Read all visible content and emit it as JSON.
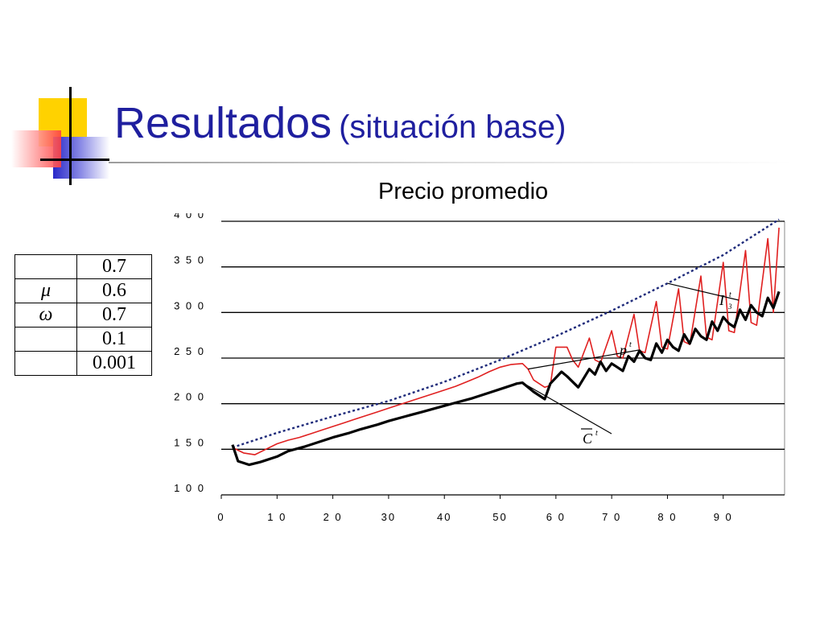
{
  "slide": {
    "title_main": "Resultados",
    "title_sub": "(situación base)",
    "colors": {
      "title": "#1f1f9f",
      "deco_yellow": "#ffd200",
      "deco_blue": "#2828c8",
      "deco_red": "#ff4040"
    }
  },
  "param_table": {
    "rows": [
      {
        "symbol": "",
        "value": "0.7"
      },
      {
        "symbol": "μ",
        "value": "0.6"
      },
      {
        "symbol": "ω",
        "value": "0.7"
      },
      {
        "symbol": "",
        "value": "0.1"
      },
      {
        "symbol": "",
        "value": "0.001"
      }
    ]
  },
  "chart_data": {
    "type": "line",
    "title": "Precio promedio",
    "xlabel": "",
    "ylabel": "",
    "xlim": [
      0,
      101
    ],
    "ylim": [
      100,
      400
    ],
    "x_ticks": [
      0,
      10,
      20,
      30,
      40,
      50,
      60,
      70,
      80,
      90
    ],
    "x_tick_labels": [
      "0",
      "1 0",
      "2 0",
      "30",
      "40",
      "50",
      "6 0",
      "7 0",
      "8 0",
      "9 0"
    ],
    "y_ticks": [
      100,
      150,
      200,
      250,
      300,
      350,
      400
    ],
    "y_tick_labels": [
      "1 0 0",
      "1 5 0",
      "2 0 0",
      "2 5 0",
      "3 0 0",
      "3 5 0",
      "4 0 0"
    ],
    "grid": "horizontal",
    "series_colors": [
      "#1e2a7a",
      "#e02020",
      "#000000"
    ],
    "series": [
      {
        "name": "I3t",
        "style": "dotted",
        "x": [
          2,
          10,
          20,
          30,
          40,
          50,
          60,
          70,
          80,
          90,
          100
        ],
        "y": [
          152,
          168,
          186,
          203,
          224,
          248,
          274,
          302,
          332,
          363,
          402
        ]
      },
      {
        "name": "pt",
        "style": "solid",
        "x": [
          2,
          4,
          6,
          8,
          10,
          12,
          14,
          16,
          18,
          20,
          22,
          24,
          26,
          28,
          30,
          32,
          34,
          36,
          38,
          40,
          42,
          44,
          46,
          48,
          50,
          52,
          54,
          55,
          56,
          58,
          59,
          60,
          62,
          63,
          64,
          66,
          67,
          68,
          70,
          71,
          72,
          74,
          75,
          76,
          78,
          79,
          80,
          82,
          83,
          84,
          86,
          87,
          88,
          90,
          91,
          92,
          94,
          95,
          96,
          98,
          99,
          100
        ],
        "y": [
          152,
          146,
          144,
          150,
          156,
          160,
          163,
          167,
          171,
          175,
          179,
          183,
          187,
          191,
          195,
          199,
          203,
          207,
          211,
          215,
          219,
          224,
          229,
          235,
          240,
          243,
          244,
          238,
          226,
          218,
          220,
          262,
          262,
          248,
          240,
          272,
          248,
          245,
          280,
          252,
          250,
          298,
          258,
          256,
          312,
          262,
          260,
          326,
          268,
          265,
          340,
          273,
          270,
          355,
          280,
          278,
          368,
          289,
          286,
          381,
          300,
          393
        ]
      },
      {
        "name": "Ct",
        "style": "solid-thick",
        "x": [
          2,
          3,
          5,
          7,
          10,
          12,
          15,
          18,
          20,
          23,
          25,
          28,
          30,
          33,
          36,
          39,
          42,
          45,
          48,
          51,
          53,
          54,
          56,
          58,
          59,
          61,
          62,
          64,
          66,
          67,
          68,
          69,
          70,
          71,
          72,
          73,
          74,
          75,
          76,
          77,
          78,
          79,
          80,
          81,
          82,
          83,
          84,
          85,
          86,
          87,
          88,
          89,
          90,
          91,
          92,
          93,
          94,
          95,
          96,
          97,
          98,
          99,
          100
        ],
        "y": [
          155,
          137,
          133,
          136,
          142,
          148,
          153,
          159,
          163,
          168,
          172,
          177,
          181,
          186,
          191,
          196,
          201,
          206,
          212,
          218,
          222,
          223,
          213,
          205,
          222,
          235,
          230,
          218,
          238,
          232,
          246,
          236,
          244,
          240,
          236,
          252,
          246,
          258,
          250,
          248,
          266,
          256,
          270,
          262,
          258,
          276,
          266,
          282,
          274,
          270,
          290,
          280,
          295,
          288,
          284,
          303,
          292,
          308,
          300,
          296,
          316,
          305,
          323
        ]
      }
    ],
    "annotations": [
      {
        "label": "I",
        "sup": "t",
        "sub": "3",
        "target_series": "I3t"
      },
      {
        "label": "p",
        "sup": "t",
        "target_series": "pt"
      },
      {
        "label": "C",
        "sup": "t",
        "overline": true,
        "target_series": "Ct"
      }
    ]
  }
}
